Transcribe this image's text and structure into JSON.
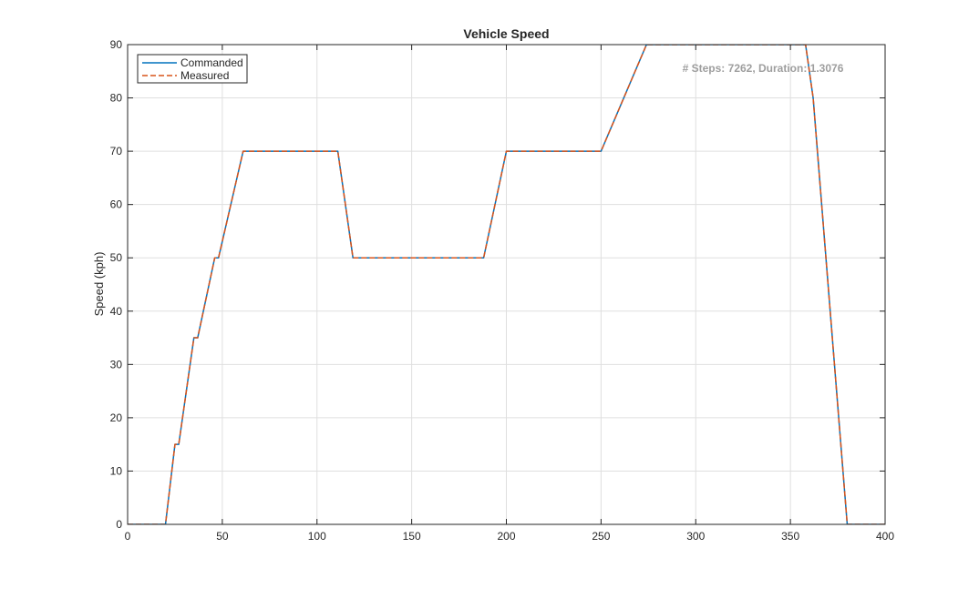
{
  "chart_data": {
    "type": "line",
    "title": "Vehicle Speed",
    "xlabel": "",
    "ylabel": "Speed (kph)",
    "xlim": [
      0,
      400
    ],
    "ylim": [
      0,
      90
    ],
    "xticks": [
      0,
      50,
      100,
      150,
      200,
      250,
      300,
      350,
      400
    ],
    "yticks": [
      0,
      10,
      20,
      30,
      40,
      50,
      60,
      70,
      80,
      90
    ],
    "grid": true,
    "legend_position": "top-left",
    "annotation": "# Steps: 7262, Duration: 1.3076",
    "series": [
      {
        "name": "Commanded",
        "color": "#0072BD",
        "style": "solid",
        "x": [
          0,
          20,
          25,
          27,
          35,
          37,
          46,
          48,
          61,
          111,
          119,
          188,
          200,
          250,
          274,
          358,
          362,
          380,
          400
        ],
        "y": [
          0,
          0,
          15,
          15,
          35,
          35,
          50,
          50,
          70,
          70,
          50,
          50,
          70,
          70,
          90,
          90,
          80,
          0,
          0
        ]
      },
      {
        "name": "Measured",
        "color": "#D95319",
        "style": "dashed",
        "x": [
          0,
          20,
          25,
          27,
          35,
          37,
          46,
          48,
          61,
          111,
          119,
          188,
          200,
          250,
          274,
          358,
          362,
          380,
          400
        ],
        "y": [
          0,
          0,
          15,
          15,
          35,
          35,
          50,
          50,
          70,
          70,
          50,
          50,
          70,
          70,
          90,
          90,
          80,
          0,
          0
        ]
      }
    ]
  }
}
